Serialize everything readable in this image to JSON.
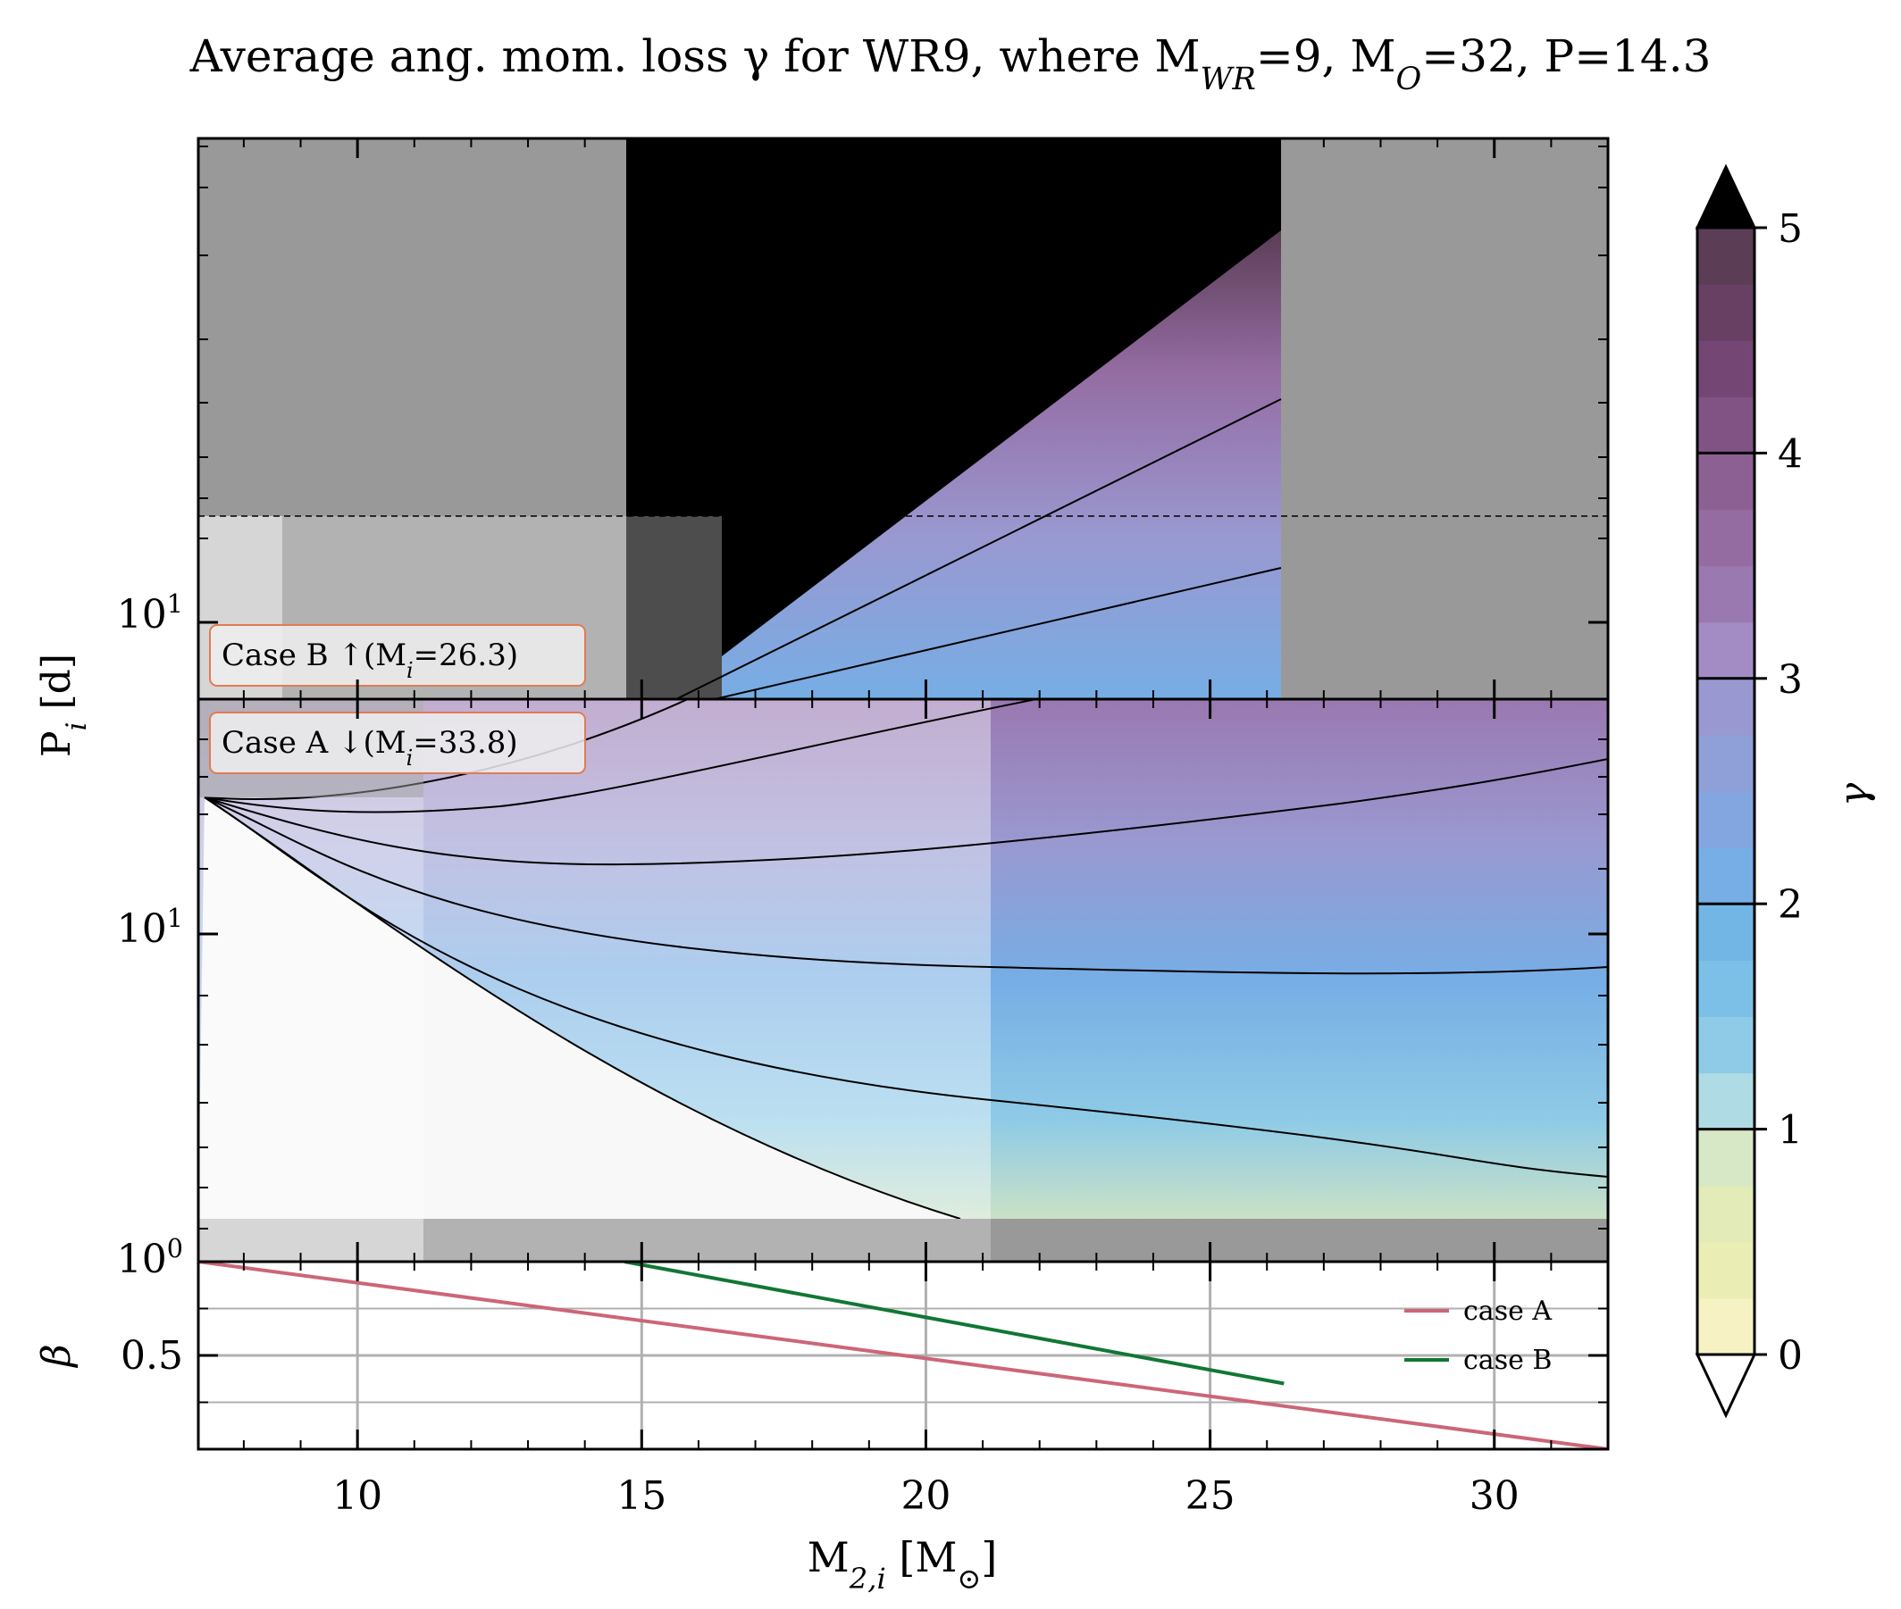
{
  "chart_data": {
    "type": "contour",
    "title": "Average ang. mom. loss γ for WR9, where M",
    "title_parts": [
      {
        "text": "Average ang. mom. loss γ for WR9, where M",
        "sub": ""
      },
      {
        "text": "",
        "sub": "WR"
      },
      {
        "text": "=9, M",
        "sub": ""
      },
      {
        "text": "",
        "sub": "O"
      },
      {
        "text": "=32, P=14.3",
        "sub": ""
      }
    ],
    "xlabel": "M",
    "xlabel_sub": "2,i",
    "xlabel_tail": " [M",
    "xlabel_tail_sub": "⊙",
    "xlabel_end": "]",
    "xlim": [
      7.2,
      32
    ],
    "xticks": [
      10,
      15,
      20,
      25,
      30
    ],
    "xtick_labels": [
      "10",
      "15",
      "20",
      "25",
      "30"
    ],
    "top_panel": {
      "ylabel": "P",
      "ylabel_sub": "i",
      "ylabel_tail": " [d]",
      "scale": "log",
      "ytick_label": "10",
      "ytick_exp": "1",
      "case_label": "Case B ↑(M",
      "case_label_sub": "i",
      "case_label_tail": "=26.3)",
      "case_mass": 26.3,
      "dashed_level": 0.67,
      "contour_levels": [
        3,
        4
      ],
      "gray_regions": [
        {
          "x": [
            7.2,
            14.7
          ],
          "shade": "#999999"
        },
        {
          "x": [
            26.3,
            32
          ],
          "shade": "#999999"
        }
      ]
    },
    "middle_panel": {
      "ytick_label": "10",
      "ytick_exp": "1",
      "ybottom_label": "10",
      "ybottom_exp": "0",
      "case_label": "Case A ↓(M",
      "case_label_sub": "i",
      "case_label_tail": "=33.8)",
      "case_mass": 33.8,
      "contour_levels": [
        0,
        1,
        2,
        3,
        4
      ]
    },
    "bottom_panel": {
      "ylabel": "β",
      "yticks": [
        0.5
      ],
      "ytick_labels": [
        "0.5"
      ],
      "ylim": [
        0,
        1
      ],
      "series": [
        {
          "name": "case A",
          "color": "#cc6677",
          "x": [
            7.2,
            32
          ],
          "y": [
            1.0,
            0.0
          ]
        },
        {
          "name": "case B",
          "color": "#117733",
          "x": [
            14.7,
            26.3
          ],
          "y": [
            1.0,
            0.35
          ]
        }
      ]
    },
    "colorbar": {
      "label": "γ",
      "ticks": [
        0,
        1,
        2,
        3,
        4,
        5
      ],
      "tick_labels": [
        "0",
        "1",
        "2",
        "3",
        "4",
        "5"
      ],
      "vmin": 0,
      "vmax": 5,
      "extend": "both",
      "colors": [
        "#f6f2c3",
        "#ebeeb4",
        "#e3ebb8",
        "#d6e8c6",
        "#aedbe4",
        "#8fcbe6",
        "#7cc0e8",
        "#72b6e6",
        "#76aee5",
        "#83a6e0",
        "#8f9fd8",
        "#9a98d0",
        "#a38cc4",
        "#9a78b0",
        "#946ca2",
        "#8d6094",
        "#815384",
        "#744674",
        "#674064",
        "#5b3d55"
      ]
    }
  }
}
